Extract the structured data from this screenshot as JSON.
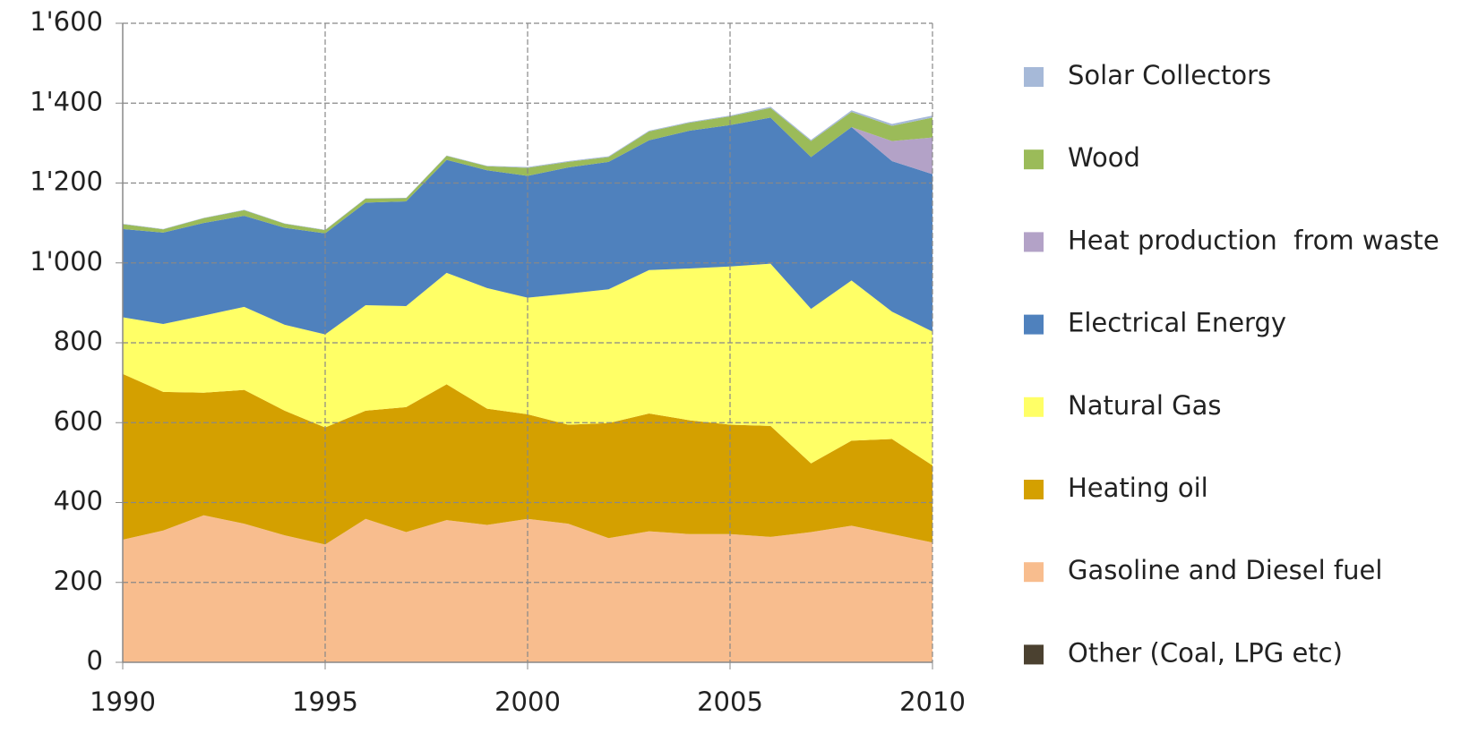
{
  "chart_data": {
    "type": "stacked_area",
    "x": [
      1990,
      1991,
      1992,
      1993,
      1994,
      1995,
      1996,
      1997,
      1998,
      1999,
      2000,
      2001,
      2002,
      2003,
      2004,
      2005,
      2006,
      2007,
      2008,
      2009,
      2010
    ],
    "series": [
      {
        "name": "Other (Coal, LPG etc)",
        "color": "#4b4130",
        "values": [
          0,
          0,
          0,
          0,
          0,
          0,
          0,
          0,
          0,
          0,
          0,
          0,
          0,
          0,
          0,
          0,
          0,
          0,
          0,
          0,
          0
        ]
      },
      {
        "name": "Gasoline and Diesel fuel",
        "color": "#f8bd8e",
        "values": [
          307,
          330,
          368,
          347,
          318,
          295,
          359,
          326,
          356,
          344,
          359,
          347,
          311,
          328,
          321,
          321,
          314,
          326,
          342,
          321,
          300
        ]
      },
      {
        "name": "Heating oil",
        "color": "#d4a000",
        "values": [
          415,
          347,
          307,
          335,
          312,
          293,
          271,
          313,
          340,
          291,
          262,
          248,
          288,
          295,
          285,
          274,
          278,
          172,
          213,
          238,
          193
        ]
      },
      {
        "name": "Natural Gas",
        "color": "#ffff66",
        "values": [
          142,
          170,
          193,
          208,
          215,
          233,
          264,
          253,
          279,
          302,
          292,
          328,
          335,
          359,
          380,
          396,
          406,
          387,
          401,
          319,
          335
        ]
      },
      {
        "name": "Electrical Energy",
        "color": "#4f81bd",
        "values": [
          221,
          229,
          232,
          228,
          243,
          253,
          257,
          262,
          283,
          295,
          305,
          316,
          319,
          325,
          345,
          354,
          366,
          380,
          384,
          377,
          394
        ]
      },
      {
        "name": "Heat production  from waste",
        "color": "#b3a2c7",
        "values": [
          0,
          0,
          0,
          0,
          0,
          0,
          0,
          0,
          0,
          0,
          0,
          0,
          0,
          0,
          0,
          0,
          0,
          0,
          0,
          50,
          92
        ]
      },
      {
        "name": "Wood",
        "color": "#9bbb59",
        "values": [
          12,
          8,
          12,
          14,
          10,
          8,
          10,
          8,
          10,
          10,
          20,
          14,
          12,
          22,
          20,
          22,
          24,
          40,
          38,
          38,
          50
        ]
      },
      {
        "name": "Solar Collectors",
        "color": "#a6b9d8",
        "values": [
          1,
          1,
          1,
          1,
          1,
          1,
          1,
          1,
          1,
          1,
          2,
          2,
          2,
          2,
          2,
          2,
          3,
          3,
          4,
          5,
          5
        ]
      }
    ],
    "xlim": [
      1990,
      2010
    ],
    "xticks": [
      1990,
      1995,
      2000,
      2005,
      2010
    ],
    "ylim": [
      0,
      1600
    ],
    "yticks": [
      0,
      200,
      400,
      600,
      800,
      {
        "value": 1000,
        "label": "1'000"
      },
      {
        "value": 1200,
        "label": "1'200"
      },
      {
        "value": 1400,
        "label": "1'400"
      },
      {
        "value": 1600,
        "label": "1'600"
      }
    ],
    "grid": true
  }
}
